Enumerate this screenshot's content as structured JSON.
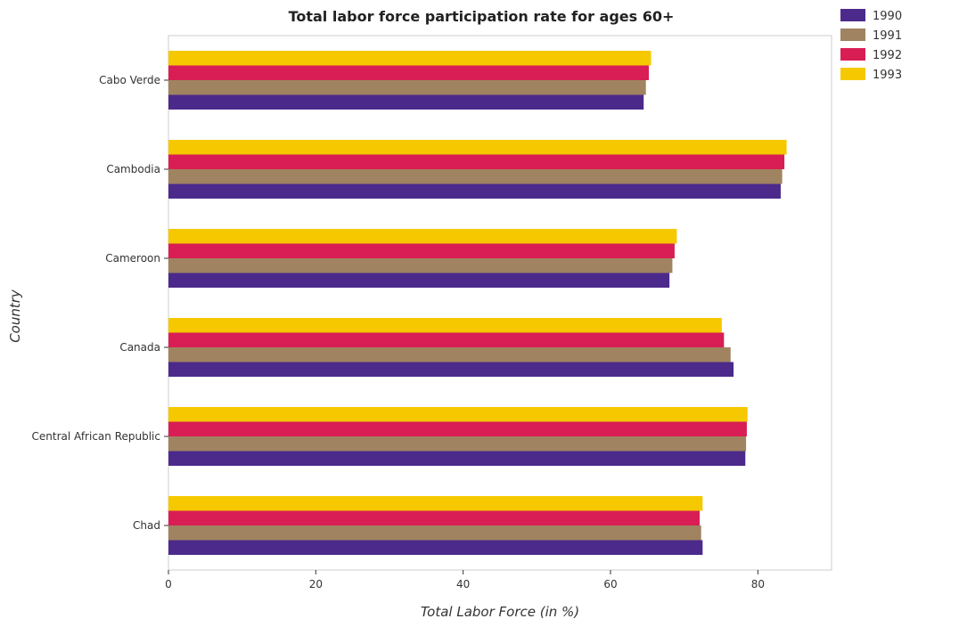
{
  "chart_data": {
    "type": "bar",
    "orientation": "horizontal",
    "title": "Total labor force participation rate for ages 60+",
    "xlabel": "Total Labor Force (in %)",
    "ylabel": "Country",
    "xlim": [
      0,
      90
    ],
    "xticks": [
      0,
      20,
      40,
      60,
      80
    ],
    "xtick_labels": [
      "0",
      "20",
      "40",
      "60",
      "80"
    ],
    "legend_position": "top-right",
    "categories": [
      "Cabo Verde",
      "Cambodia",
      "Cameroon",
      "Canada",
      "Central African Republic",
      "Chad"
    ],
    "series": [
      {
        "name": "1990",
        "color": "#4b2a8c",
        "values": [
          64.5,
          83.1,
          68.0,
          76.7,
          78.3,
          72.5
        ]
      },
      {
        "name": "1991",
        "color": "#a08360",
        "values": [
          64.8,
          83.3,
          68.4,
          76.3,
          78.4,
          72.3
        ]
      },
      {
        "name": "1992",
        "color": "#d81e54",
        "values": [
          65.2,
          83.6,
          68.7,
          75.4,
          78.5,
          72.1
        ]
      },
      {
        "name": "1993",
        "color": "#f5c800",
        "values": [
          65.5,
          83.9,
          69.0,
          75.1,
          78.6,
          72.5
        ]
      }
    ]
  }
}
